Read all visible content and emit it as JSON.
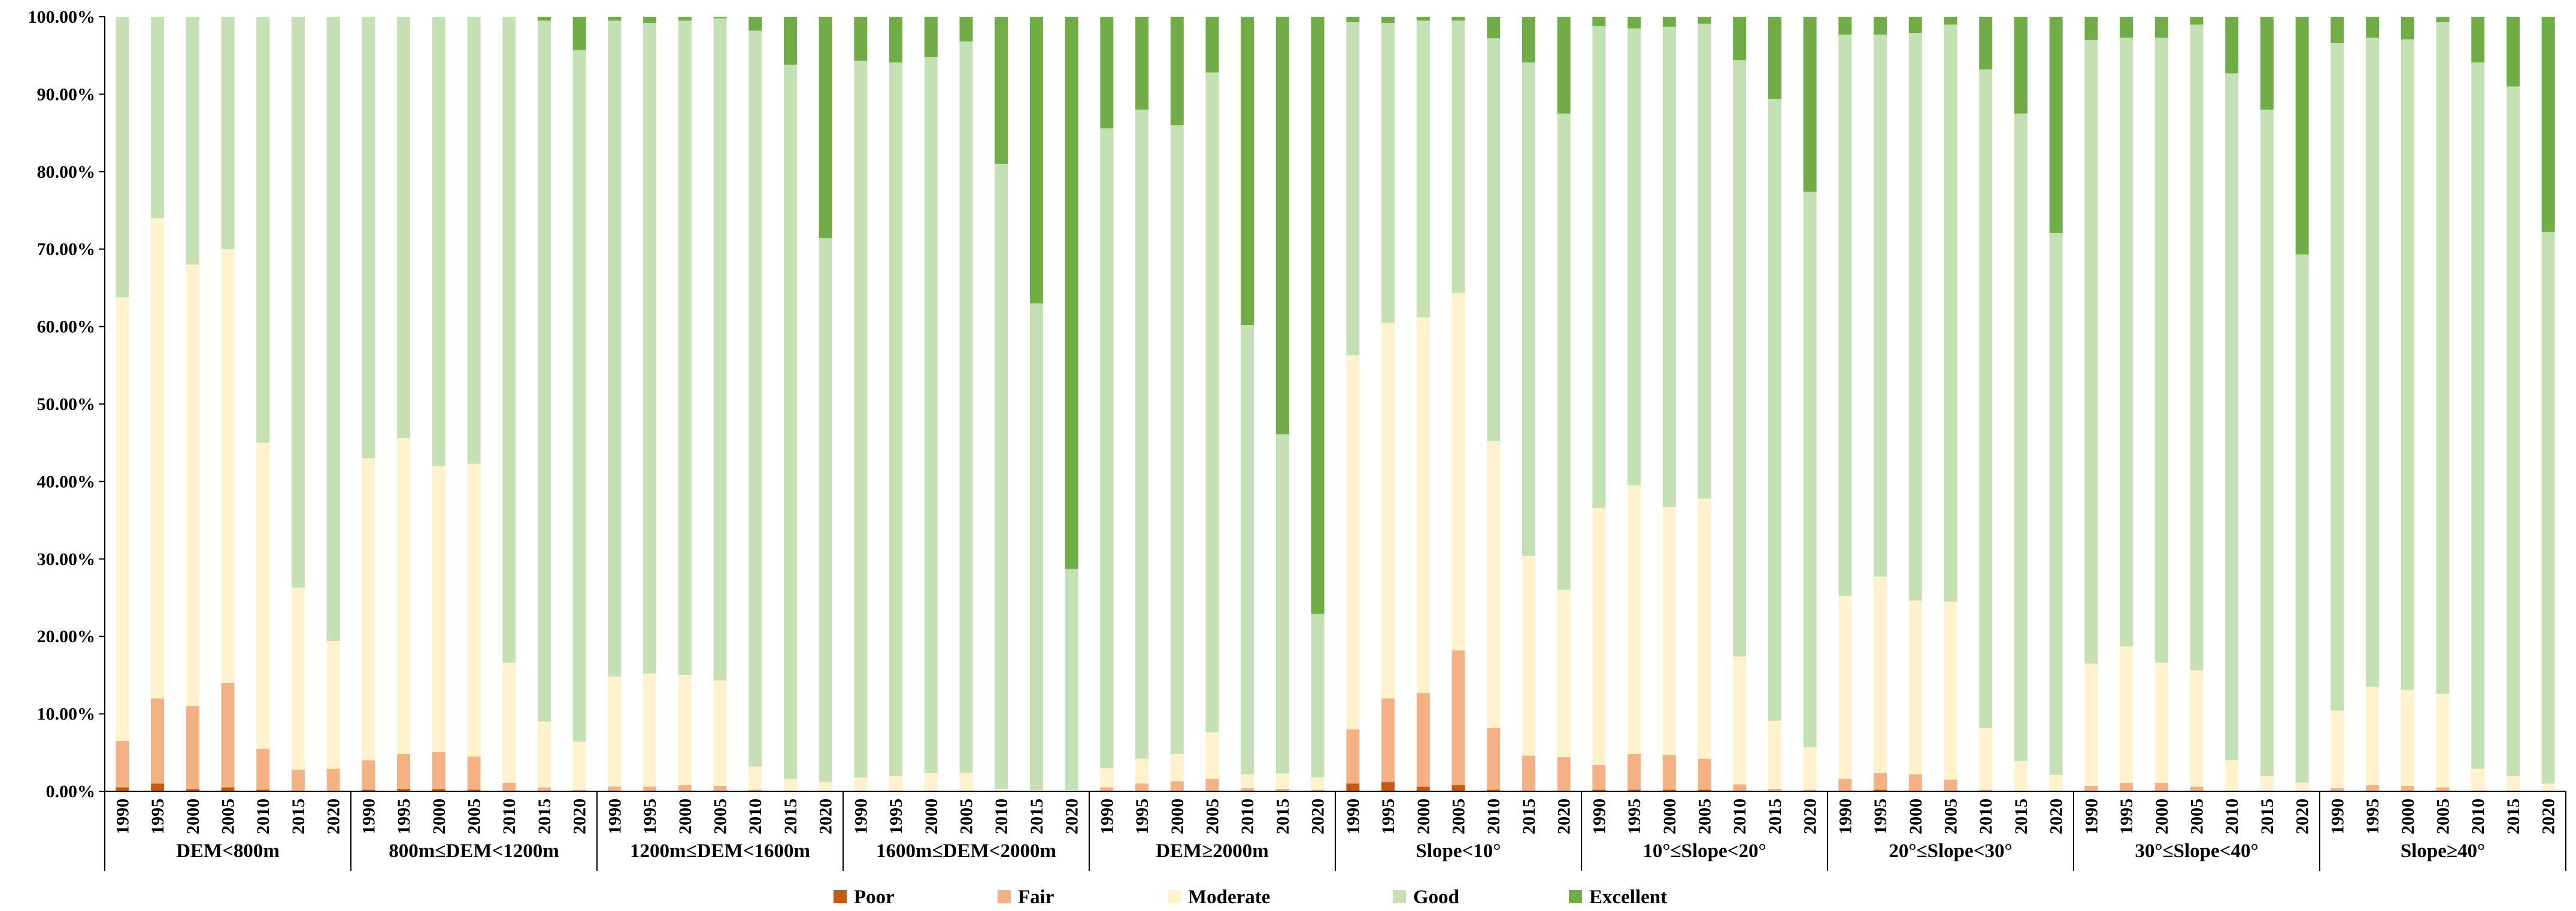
{
  "chart_data": {
    "type": "bar",
    "stacked": true,
    "title": "",
    "xlabel": "",
    "ylabel": "",
    "ylim": [
      0,
      100
    ],
    "yticks": [
      "0.00%",
      "10.00%",
      "20.00%",
      "30.00%",
      "40.00%",
      "50.00%",
      "60.00%",
      "70.00%",
      "80.00%",
      "90.00%",
      "100.00%"
    ],
    "years": [
      "1990",
      "1995",
      "2000",
      "2005",
      "2010",
      "2015",
      "2020"
    ],
    "legend_position": "bottom",
    "legend": [
      {
        "name": "Poor",
        "color": "#C55A11"
      },
      {
        "name": "Fair",
        "color": "#F4B183"
      },
      {
        "name": "Moderate",
        "color": "#FFF2CC"
      },
      {
        "name": "Good",
        "color": "#C5E0B4"
      },
      {
        "name": "Excellent",
        "color": "#70AD47"
      }
    ],
    "groups": [
      {
        "label": "DEM<800m",
        "bars": [
          {
            "year": "1990",
            "values": [
              0.5,
              6.0,
              57.3,
              36.2,
              0.0
            ]
          },
          {
            "year": "1995",
            "values": [
              1.0,
              11.0,
              62.0,
              26.0,
              0.0
            ]
          },
          {
            "year": "2000",
            "values": [
              0.3,
              10.7,
              57.0,
              32.0,
              0.0
            ]
          },
          {
            "year": "2005",
            "values": [
              0.5,
              13.5,
              56.0,
              30.0,
              0.0
            ]
          },
          {
            "year": "2010",
            "values": [
              0.2,
              5.3,
              39.5,
              55.0,
              0.0
            ]
          },
          {
            "year": "2015",
            "values": [
              0.1,
              2.7,
              23.5,
              73.7,
              0.0
            ]
          },
          {
            "year": "2020",
            "values": [
              0.1,
              2.8,
              16.5,
              80.6,
              0.0
            ]
          }
        ]
      },
      {
        "label": "800m≤DEM<1200m",
        "bars": [
          {
            "year": "1990",
            "values": [
              0.2,
              3.8,
              39.0,
              57.0,
              0.0
            ]
          },
          {
            "year": "1995",
            "values": [
              0.3,
              4.5,
              40.8,
              54.4,
              0.0
            ]
          },
          {
            "year": "2000",
            "values": [
              0.3,
              4.8,
              36.9,
              58.0,
              0.0
            ]
          },
          {
            "year": "2005",
            "values": [
              0.2,
              4.3,
              37.8,
              57.7,
              0.0
            ]
          },
          {
            "year": "2010",
            "values": [
              0.1,
              1.0,
              15.5,
              83.4,
              0.0
            ]
          },
          {
            "year": "2015",
            "values": [
              0.0,
              0.5,
              8.5,
              90.5,
              0.5
            ]
          },
          {
            "year": "2020",
            "values": [
              0.0,
              0.2,
              6.2,
              89.3,
              4.3
            ]
          }
        ]
      },
      {
        "label": "1200m≤DEM<1600m",
        "bars": [
          {
            "year": "1990",
            "values": [
              0.1,
              0.5,
              14.2,
              84.7,
              0.5
            ]
          },
          {
            "year": "1995",
            "values": [
              0.1,
              0.5,
              14.6,
              84.0,
              0.8
            ]
          },
          {
            "year": "2000",
            "values": [
              0.1,
              0.7,
              14.2,
              84.5,
              0.5
            ]
          },
          {
            "year": "2005",
            "values": [
              0.1,
              0.6,
              13.6,
              85.5,
              0.2
            ]
          },
          {
            "year": "2010",
            "values": [
              0.0,
              0.2,
              3.0,
              95.0,
              1.8
            ]
          },
          {
            "year": "2015",
            "values": [
              0.0,
              0.1,
              1.5,
              92.2,
              6.2
            ]
          },
          {
            "year": "2020",
            "values": [
              0.0,
              0.1,
              1.1,
              70.2,
              28.6
            ]
          }
        ]
      },
      {
        "label": "1600m≤DEM<2000m",
        "bars": [
          {
            "year": "1990",
            "values": [
              0.0,
              0.1,
              1.7,
              92.5,
              5.7
            ]
          },
          {
            "year": "1995",
            "values": [
              0.0,
              0.1,
              1.9,
              92.1,
              5.9
            ]
          },
          {
            "year": "2000",
            "values": [
              0.0,
              0.1,
              2.3,
              92.4,
              5.2
            ]
          },
          {
            "year": "2005",
            "values": [
              0.0,
              0.1,
              2.3,
              94.4,
              3.2
            ]
          },
          {
            "year": "2010",
            "values": [
              0.0,
              0.0,
              0.3,
              80.7,
              19.0
            ]
          },
          {
            "year": "2015",
            "values": [
              0.0,
              0.0,
              0.2,
              62.8,
              37.0
            ]
          },
          {
            "year": "2020",
            "values": [
              0.0,
              0.0,
              0.2,
              28.5,
              71.3
            ]
          }
        ]
      },
      {
        "label": "DEM≥2000m",
        "bars": [
          {
            "year": "1990",
            "values": [
              0.0,
              0.5,
              2.5,
              82.6,
              14.4
            ]
          },
          {
            "year": "1995",
            "values": [
              0.0,
              1.0,
              3.2,
              83.8,
              12.0
            ]
          },
          {
            "year": "2000",
            "values": [
              0.0,
              1.3,
              3.5,
              81.2,
              14.0
            ]
          },
          {
            "year": "2005",
            "values": [
              0.0,
              1.6,
              6.0,
              85.2,
              7.2
            ]
          },
          {
            "year": "2010",
            "values": [
              0.0,
              0.4,
              1.8,
              58.0,
              39.8
            ]
          },
          {
            "year": "2015",
            "values": [
              0.0,
              0.3,
              2.0,
              43.8,
              53.9
            ]
          },
          {
            "year": "2020",
            "values": [
              0.0,
              0.2,
              1.6,
              21.1,
              77.1
            ]
          }
        ]
      },
      {
        "label": "Slope<10°",
        "bars": [
          {
            "year": "1990",
            "values": [
              1.0,
              7.0,
              48.3,
              43.0,
              0.7
            ]
          },
          {
            "year": "1995",
            "values": [
              1.2,
              10.8,
              48.5,
              38.7,
              0.8
            ]
          },
          {
            "year": "2000",
            "values": [
              0.6,
              12.1,
              48.5,
              38.3,
              0.5
            ]
          },
          {
            "year": "2005",
            "values": [
              0.8,
              17.4,
              46.1,
              35.2,
              0.5
            ]
          },
          {
            "year": "2010",
            "values": [
              0.2,
              8.0,
              37.0,
              52.0,
              2.8
            ]
          },
          {
            "year": "2015",
            "values": [
              0.1,
              4.5,
              25.8,
              63.7,
              5.9
            ]
          },
          {
            "year": "2020",
            "values": [
              0.1,
              4.3,
              21.6,
              61.5,
              12.5
            ]
          }
        ]
      },
      {
        "label": "10°≤Slope<20°",
        "bars": [
          {
            "year": "1990",
            "values": [
              0.2,
              3.2,
              33.2,
              62.2,
              1.2
            ]
          },
          {
            "year": "1995",
            "values": [
              0.2,
              4.6,
              34.7,
              59.0,
              1.5
            ]
          },
          {
            "year": "2000",
            "values": [
              0.2,
              4.5,
              32.0,
              62.0,
              1.3
            ]
          },
          {
            "year": "2005",
            "values": [
              0.2,
              4.0,
              33.6,
              61.3,
              0.9
            ]
          },
          {
            "year": "2010",
            "values": [
              0.1,
              0.8,
              16.5,
              77.0,
              5.6
            ]
          },
          {
            "year": "2015",
            "values": [
              0.0,
              0.3,
              8.8,
              80.3,
              10.6
            ]
          },
          {
            "year": "2020",
            "values": [
              0.0,
              0.2,
              5.5,
              71.7,
              22.6
            ]
          }
        ]
      },
      {
        "label": "20°≤Slope<30°",
        "bars": [
          {
            "year": "1990",
            "values": [
              0.1,
              1.5,
              23.6,
              72.5,
              2.3
            ]
          },
          {
            "year": "1995",
            "values": [
              0.2,
              2.2,
              25.3,
              70.0,
              2.3
            ]
          },
          {
            "year": "2000",
            "values": [
              0.1,
              2.1,
              22.4,
              73.3,
              2.1
            ]
          },
          {
            "year": "2005",
            "values": [
              0.1,
              1.4,
              23.0,
              74.5,
              1.0
            ]
          },
          {
            "year": "2010",
            "values": [
              0.0,
              0.2,
              8.0,
              85.0,
              6.8
            ]
          },
          {
            "year": "2015",
            "values": [
              0.0,
              0.1,
              3.8,
              83.6,
              12.5
            ]
          },
          {
            "year": "2020",
            "values": [
              0.0,
              0.1,
              2.0,
              70.0,
              27.9
            ]
          }
        ]
      },
      {
        "label": "30°≤Slope<40°",
        "bars": [
          {
            "year": "1990",
            "values": [
              0.0,
              0.7,
              15.8,
              80.5,
              3.0
            ]
          },
          {
            "year": "1995",
            "values": [
              0.1,
              1.0,
              17.6,
              78.6,
              2.7
            ]
          },
          {
            "year": "2000",
            "values": [
              0.1,
              1.0,
              15.5,
              80.7,
              2.7
            ]
          },
          {
            "year": "2005",
            "values": [
              0.0,
              0.6,
              15.0,
              83.4,
              1.0
            ]
          },
          {
            "year": "2010",
            "values": [
              0.0,
              0.1,
              3.9,
              88.7,
              7.3
            ]
          },
          {
            "year": "2015",
            "values": [
              0.0,
              0.1,
              1.9,
              86.0,
              12.0
            ]
          },
          {
            "year": "2020",
            "values": [
              0.0,
              0.1,
              1.0,
              68.2,
              30.7
            ]
          }
        ]
      },
      {
        "label": "Slope≥40°",
        "bars": [
          {
            "year": "1990",
            "values": [
              0.0,
              0.4,
              10.0,
              86.2,
              3.4
            ]
          },
          {
            "year": "1995",
            "values": [
              0.1,
              0.7,
              12.7,
              83.8,
              2.7
            ]
          },
          {
            "year": "2000",
            "values": [
              0.1,
              0.6,
              12.4,
              84.0,
              2.9
            ]
          },
          {
            "year": "2005",
            "values": [
              0.0,
              0.5,
              12.1,
              86.7,
              0.7
            ]
          },
          {
            "year": "2010",
            "values": [
              0.0,
              0.1,
              2.8,
              91.2,
              5.9
            ]
          },
          {
            "year": "2015",
            "values": [
              0.0,
              0.1,
              1.9,
              89.0,
              9.0
            ]
          },
          {
            "year": "2020",
            "values": [
              0.0,
              0.0,
              1.0,
              71.2,
              27.8
            ]
          }
        ]
      }
    ]
  }
}
